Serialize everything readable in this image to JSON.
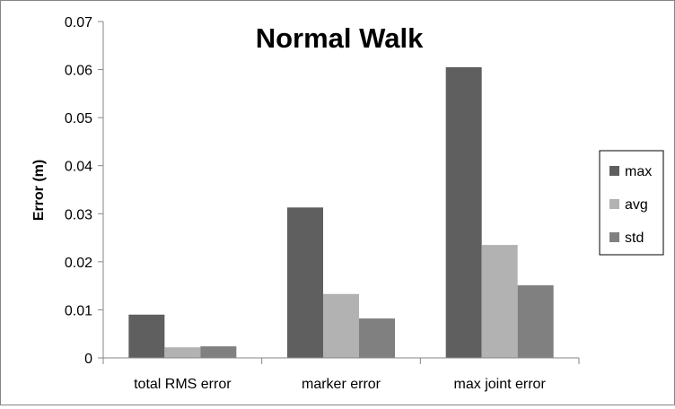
{
  "chart_data": {
    "type": "bar",
    "title": "Normal Walk",
    "xlabel": "",
    "ylabel": "Error (m)",
    "categories": [
      "total RMS error",
      "marker error",
      "max joint error"
    ],
    "series": [
      {
        "name": "max",
        "color": "#5f5f5f",
        "values": [
          0.009,
          0.0313,
          0.0605
        ]
      },
      {
        "name": "avg",
        "color": "#b2b2b2",
        "values": [
          0.0022,
          0.0133,
          0.0235
        ]
      },
      {
        "name": "std",
        "color": "#808080",
        "values": [
          0.0024,
          0.0082,
          0.0151
        ]
      }
    ],
    "ylim": [
      0,
      0.07
    ],
    "yticks": [
      "0",
      "0.01",
      "0.02",
      "0.03",
      "0.04",
      "0.05",
      "0.06",
      "0.07"
    ],
    "grid": false,
    "legend": "right"
  }
}
